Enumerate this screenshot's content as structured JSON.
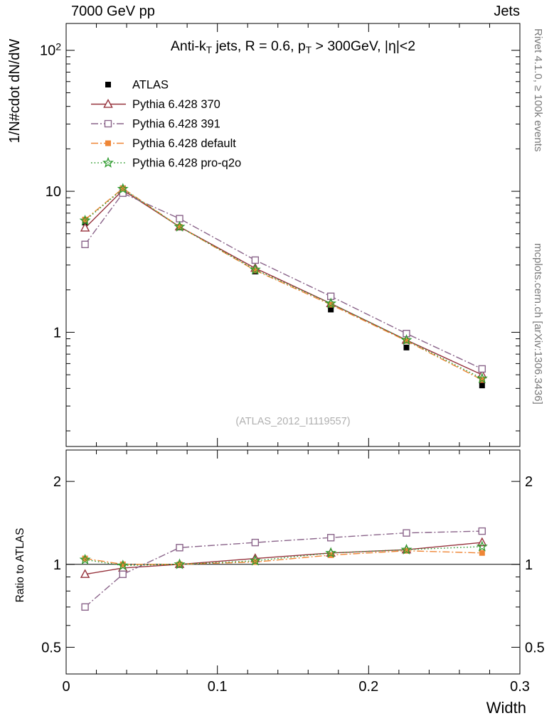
{
  "header": {
    "left": "7000 GeV pp",
    "right": "Jets"
  },
  "plot_title": "Anti-k_{T} jets, R = 0.6, p_{T} > 300GeV, |η|<2",
  "watermark": "(ATLAS_2012_I1119557)",
  "side_notes": {
    "top": "Rivet 4.1.0, ≥ 100k events",
    "bottom": "mcplots.cern.ch [arXiv:1306.3436]"
  },
  "axes": {
    "main_ylabel": "1/N#cdot dN/dW",
    "ratio_ylabel": "Ratio to ATLAS",
    "xlabel": "Width",
    "main_ytick_labels": [
      "1",
      "10",
      "10^{2}"
    ],
    "ratio_ytick_labels": [
      "0.5",
      "1",
      "2"
    ],
    "xtick_labels": [
      "0",
      "0.1",
      "0.2",
      "0.3"
    ]
  },
  "chart_data": {
    "type": "line",
    "title": "Anti-kT jets, R = 0.6, pT > 300GeV, |eta|<2",
    "xlabel": "Width",
    "x": [
      0.0125,
      0.0375,
      0.075,
      0.125,
      0.175,
      0.225,
      0.275
    ],
    "xlim": [
      0,
      0.3
    ],
    "xticks_major": [
      0,
      0.1,
      0.2,
      0.3
    ],
    "xticks_minor_step": 0.02,
    "main_panel": {
      "ylog": true,
      "ylim": [
        0.155,
        155
      ],
      "yticks_major": [
        1,
        10,
        100
      ]
    },
    "ratio_panel": {
      "ylog": true,
      "ylim": [
        0.4,
        2.6
      ],
      "yticks_major": [
        0.5,
        1,
        2
      ],
      "yticks_minor": [
        0.4,
        0.6,
        0.7,
        0.8,
        0.9
      ],
      "ref_line": 1
    },
    "series": [
      {
        "name": "ATLAS",
        "color": "#000000",
        "marker": "square-filled",
        "line": "none",
        "values": [
          6.0,
          10.5,
          5.6,
          2.7,
          1.45,
          0.78,
          0.42
        ],
        "ratio": null
      },
      {
        "name": "Pythia 6.428 370",
        "color": "#96323c",
        "marker": "triangle-open",
        "line": "solid",
        "values": [
          5.5,
          10.2,
          5.6,
          2.85,
          1.6,
          0.88,
          0.5
        ],
        "ratio": [
          0.92,
          0.97,
          1.0,
          1.05,
          1.1,
          1.13,
          1.2
        ]
      },
      {
        "name": "Pythia 6.428 391",
        "color": "#8a648a",
        "marker": "square-open",
        "line": "dashdot",
        "values": [
          4.2,
          9.7,
          6.4,
          3.25,
          1.8,
          0.98,
          0.55
        ],
        "ratio": [
          0.7,
          0.92,
          1.15,
          1.2,
          1.25,
          1.3,
          1.32
        ]
      },
      {
        "name": "Pythia 6.428 default",
        "color": "#ef8636",
        "marker": "square-filled",
        "line": "dashdot",
        "values": [
          6.3,
          10.5,
          5.6,
          2.75,
          1.57,
          0.87,
          0.46
        ],
        "ratio": [
          1.05,
          1.0,
          1.0,
          1.02,
          1.08,
          1.12,
          1.1
        ]
      },
      {
        "name": "Pythia 6.428 pro-q2o",
        "color": "#2e9b2e",
        "marker": "star-open",
        "line": "dotted",
        "values": [
          6.2,
          10.4,
          5.6,
          2.78,
          1.6,
          0.88,
          0.47
        ],
        "ratio": [
          1.04,
          0.99,
          1.0,
          1.03,
          1.1,
          1.13,
          1.16
        ]
      }
    ]
  }
}
